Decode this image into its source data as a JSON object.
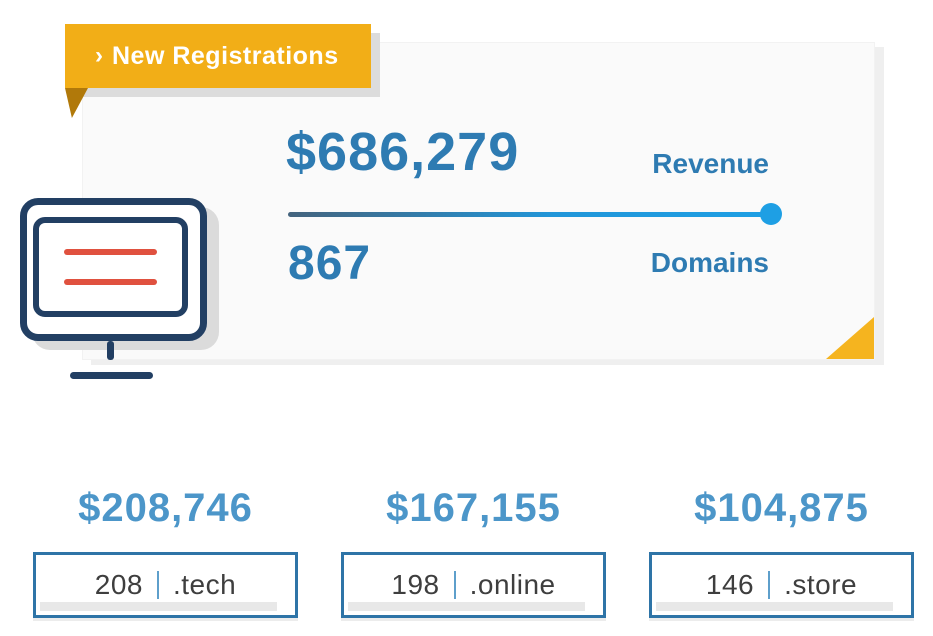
{
  "banner": {
    "chevron": "›",
    "label": "New Registrations"
  },
  "summary_card": {
    "revenue_value": "$686,279",
    "revenue_label": "Revenue",
    "domains_value": "867",
    "domains_label": "Domains"
  },
  "stats": [
    {
      "revenue": "$208,746",
      "count": "208",
      "tld": ".tech"
    },
    {
      "revenue": "$167,155",
      "count": "198",
      "tld": ".online"
    },
    {
      "revenue": "$104,875",
      "count": "146",
      "tld": ".store"
    }
  ],
  "colors": {
    "accent_yellow": "#F2AE17",
    "accent_yellow_dark": "#B1790A",
    "primary_blue": "#2E7BB2",
    "light_blue": "#4C96C9",
    "bright_blue": "#1E9FE4",
    "navy": "#223F63",
    "red": "#E0513F",
    "box_border_blue": "#2E74A7",
    "text_dark": "#3E3E3E"
  },
  "chart_data": {
    "type": "table",
    "title": "New Registrations",
    "summary": {
      "revenue_usd": 686279,
      "domains": 867
    },
    "categories": [
      ".tech",
      ".online",
      ".store"
    ],
    "series": [
      {
        "name": "Revenue (USD)",
        "values": [
          208746,
          167155,
          104875
        ]
      },
      {
        "name": "Domains registered",
        "values": [
          208,
          198,
          146
        ]
      }
    ],
    "legend_position": "none",
    "grid": false
  }
}
